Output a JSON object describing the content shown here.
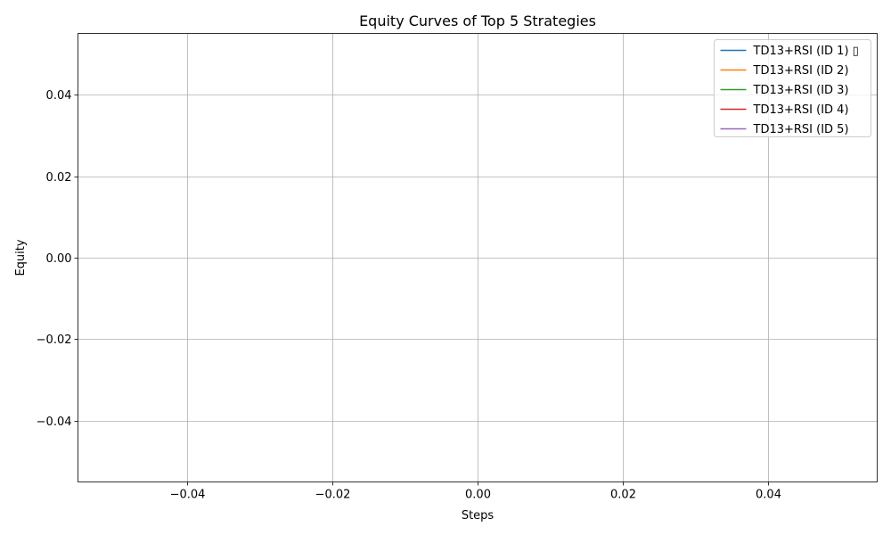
{
  "chart_data": {
    "type": "line",
    "title": "Equity Curves of Top 5 Strategies",
    "xlabel": "Steps",
    "ylabel": "Equity",
    "xlim": [
      -0.055,
      0.055
    ],
    "ylim": [
      -0.055,
      0.055
    ],
    "xticks": [
      -0.04,
      -0.02,
      0.0,
      0.02,
      0.04
    ],
    "yticks": [
      -0.04,
      -0.02,
      0.0,
      0.02,
      0.04
    ],
    "xtick_labels": [
      "−0.04",
      "−0.02",
      "0.00",
      "0.02",
      "0.04"
    ],
    "ytick_labels": [
      "−0.04",
      "−0.02",
      "0.00",
      "0.02",
      "0.04"
    ],
    "grid": true,
    "legend_position": "top-right",
    "series": [
      {
        "name": "TD13+RSI (ID 1) ▯",
        "color": "#1f77b4",
        "x": [],
        "y": []
      },
      {
        "name": "TD13+RSI (ID 2)",
        "color": "#ff7f0e",
        "x": [],
        "y": []
      },
      {
        "name": "TD13+RSI (ID 3)",
        "color": "#2ca02c",
        "x": [],
        "y": []
      },
      {
        "name": "TD13+RSI (ID 4)",
        "color": "#d62728",
        "x": [],
        "y": []
      },
      {
        "name": "TD13+RSI (ID 5)",
        "color": "#9467bd",
        "x": [],
        "y": []
      }
    ]
  }
}
